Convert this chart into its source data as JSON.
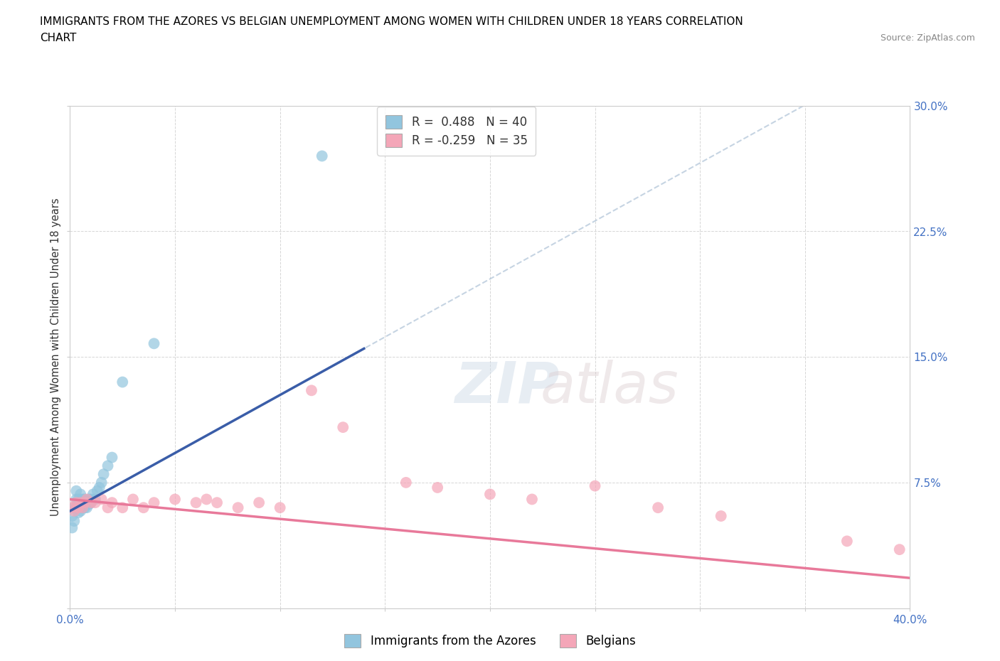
{
  "title_line1": "IMMIGRANTS FROM THE AZORES VS BELGIAN UNEMPLOYMENT AMONG WOMEN WITH CHILDREN UNDER 18 YEARS CORRELATION",
  "title_line2": "CHART",
  "source": "Source: ZipAtlas.com",
  "ylabel": "Unemployment Among Women with Children Under 18 years",
  "xlim": [
    0.0,
    0.4
  ],
  "ylim": [
    0.0,
    0.3
  ],
  "xtick_vals": [
    0.0,
    0.05,
    0.1,
    0.15,
    0.2,
    0.25,
    0.3,
    0.35,
    0.4
  ],
  "ytick_vals": [
    0.0,
    0.075,
    0.15,
    0.225,
    0.3
  ],
  "legend1_label": "R =  0.488   N = 40",
  "legend2_label": "R = -0.259   N = 35",
  "legend_subtitle1": "Immigrants from the Azores",
  "legend_subtitle2": "Belgians",
  "color_blue": "#92C5DE",
  "color_pink": "#F4A6B8",
  "line_blue": "#3A5DA8",
  "line_pink": "#E8799A",
  "line_blue_dashed": "#A8C0D8",
  "background_color": "#FFFFFF",
  "grid_color": "#CCCCCC",
  "azores_x": [
    0.001,
    0.001,
    0.002,
    0.002,
    0.003,
    0.003,
    0.003,
    0.003,
    0.004,
    0.004,
    0.004,
    0.004,
    0.005,
    0.005,
    0.005,
    0.005,
    0.005,
    0.006,
    0.006,
    0.006,
    0.007,
    0.007,
    0.007,
    0.008,
    0.008,
    0.009,
    0.009,
    0.01,
    0.01,
    0.011,
    0.012,
    0.013,
    0.014,
    0.015,
    0.016,
    0.018,
    0.02,
    0.025,
    0.04,
    0.12
  ],
  "azores_y": [
    0.055,
    0.048,
    0.06,
    0.052,
    0.06,
    0.065,
    0.07,
    0.06,
    0.06,
    0.065,
    0.063,
    0.057,
    0.063,
    0.065,
    0.068,
    0.06,
    0.058,
    0.065,
    0.063,
    0.06,
    0.06,
    0.063,
    0.065,
    0.06,
    0.063,
    0.062,
    0.065,
    0.063,
    0.065,
    0.068,
    0.065,
    0.07,
    0.072,
    0.075,
    0.08,
    0.085,
    0.09,
    0.135,
    0.158,
    0.27
  ],
  "belgians_x": [
    0.001,
    0.002,
    0.003,
    0.004,
    0.005,
    0.006,
    0.007,
    0.008,
    0.01,
    0.012,
    0.015,
    0.018,
    0.02,
    0.025,
    0.03,
    0.035,
    0.04,
    0.05,
    0.06,
    0.065,
    0.07,
    0.08,
    0.09,
    0.1,
    0.115,
    0.13,
    0.16,
    0.175,
    0.2,
    0.22,
    0.25,
    0.28,
    0.31,
    0.37,
    0.395
  ],
  "belgians_y": [
    0.06,
    0.058,
    0.063,
    0.06,
    0.063,
    0.06,
    0.063,
    0.065,
    0.063,
    0.063,
    0.065,
    0.06,
    0.063,
    0.06,
    0.065,
    0.06,
    0.063,
    0.065,
    0.063,
    0.065,
    0.063,
    0.06,
    0.063,
    0.06,
    0.13,
    0.108,
    0.075,
    0.072,
    0.068,
    0.065,
    0.073,
    0.06,
    0.055,
    0.04,
    0.035
  ],
  "blue_trendline_x0": 0.0,
  "blue_trendline_x1": 0.14,
  "blue_trendline_y0": 0.058,
  "blue_trendline_y1": 0.155,
  "pink_trendline_x0": 0.0,
  "pink_trendline_x1": 0.4,
  "pink_trendline_y0": 0.065,
  "pink_trendline_y1": 0.018
}
